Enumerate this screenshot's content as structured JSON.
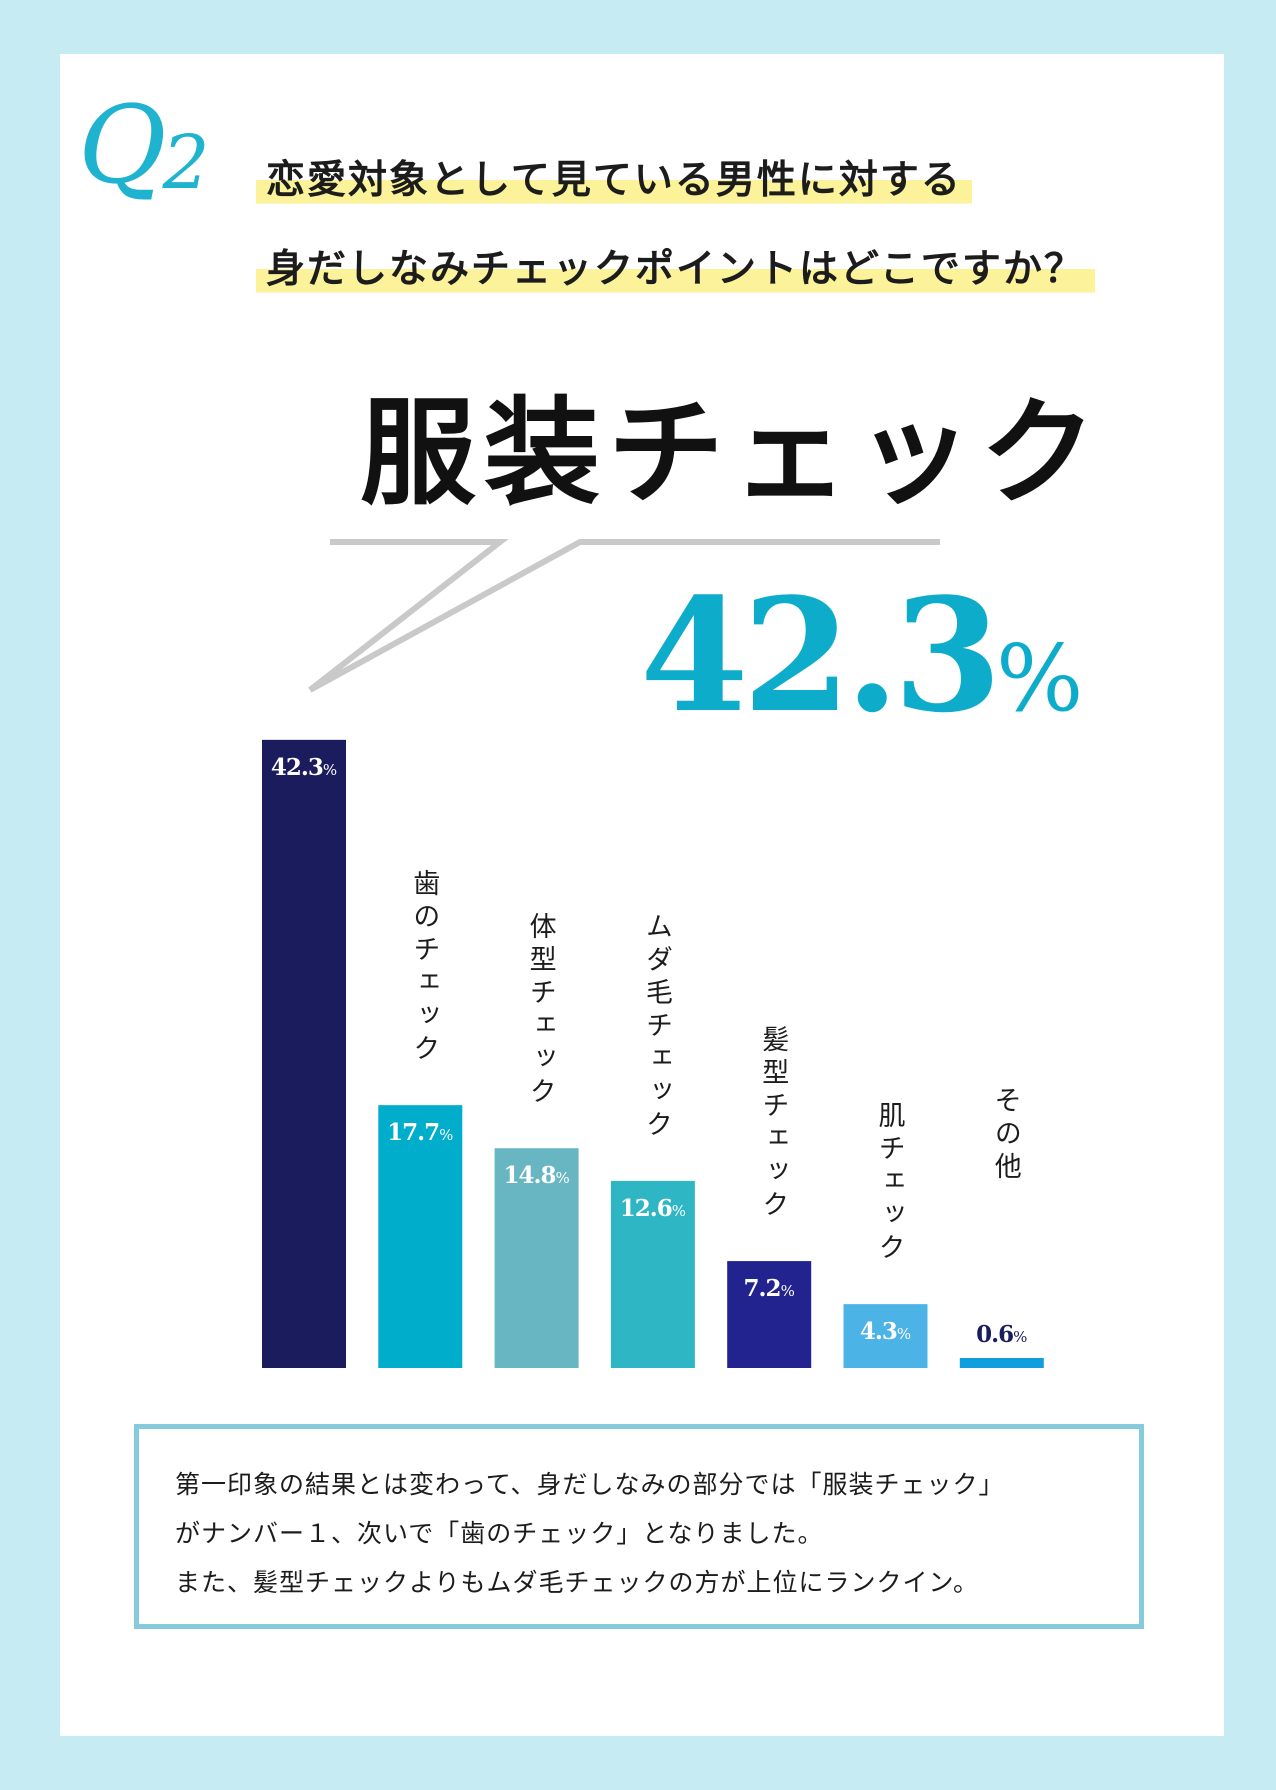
{
  "question": {
    "mark": "Q",
    "number": "2",
    "line1": "恋愛対象として見ている男性に対する",
    "line2": "身だしなみチェックポイントはどこですか？"
  },
  "top_answer": {
    "label": "服装チェック",
    "value": "42.3",
    "unit": "%"
  },
  "colors": {
    "page_bg": "#c6ebf2",
    "accent": "#0eaccb",
    "highlight": "#fbf29a",
    "box_border": "#86cbdc"
  },
  "chart_data": {
    "type": "bar",
    "categories": [
      "服装チェック",
      "歯のチェック",
      "体型チェック",
      "ムダ毛チェック",
      "髪型チェック",
      "肌チェック",
      "その他"
    ],
    "values": [
      42.3,
      17.7,
      14.8,
      12.6,
      7.2,
      4.3,
      0.6
    ],
    "unit": "%",
    "value_labels": [
      "42.3",
      "17.7",
      "14.8",
      "12.6",
      "7.2",
      "4.3",
      "0.6"
    ],
    "bar_colors": [
      "#1b1c5e",
      "#00aecc",
      "#67b6c2",
      "#2fb6c5",
      "#232390",
      "#4cb3e6",
      "#0f9fdf"
    ],
    "label_colors": [
      "#ffffff",
      "#ffffff",
      "#ffffff",
      "#ffffff",
      "#ffffff",
      "#ffffff",
      "#1b1c5e"
    ],
    "show_category_label": [
      false,
      true,
      true,
      true,
      true,
      true,
      true
    ]
  },
  "summary": {
    "line1": "第一印象の結果とは変わって、身だしなみの部分では「服装チェック」",
    "line2": "がナンバー１、次いで「歯のチェック」となりました。",
    "line3": "また、髪型チェックよりもムダ毛チェックの方が上位にランクイン。"
  }
}
